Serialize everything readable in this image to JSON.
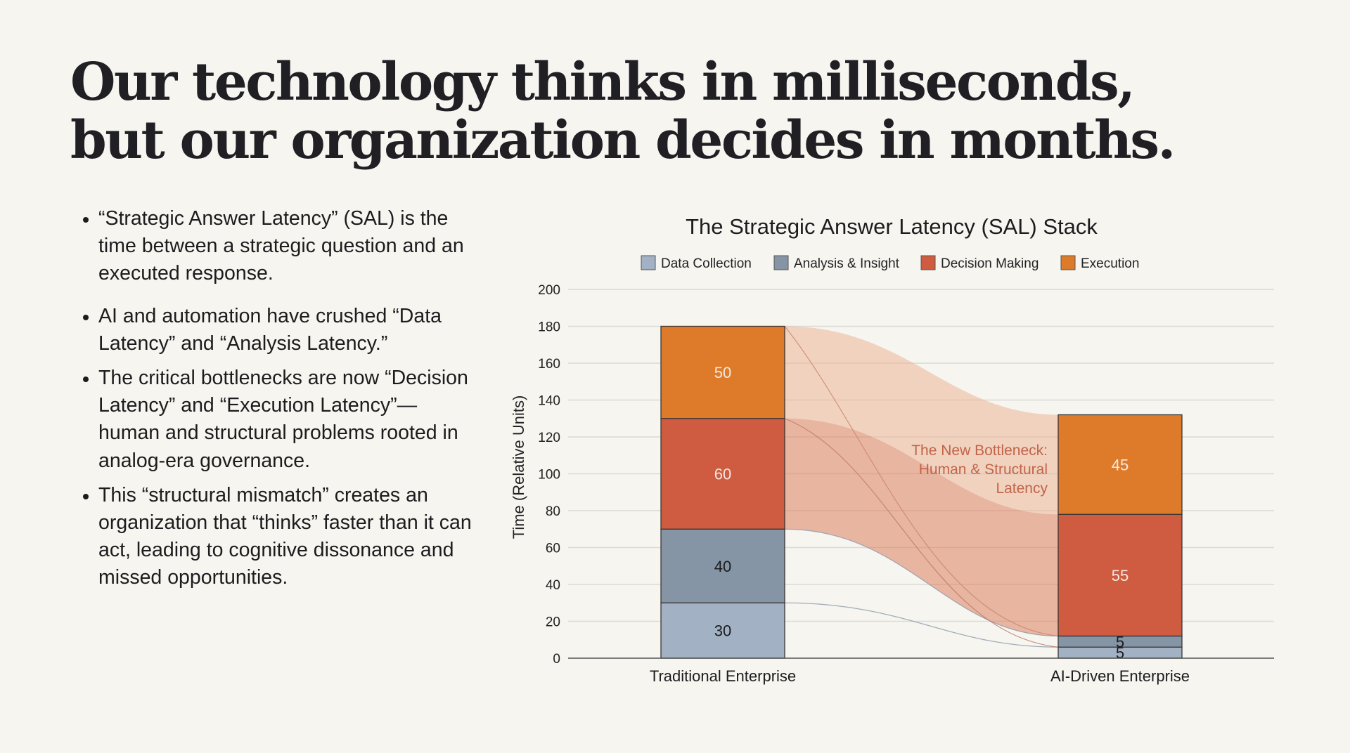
{
  "headline": {
    "line1": "Our technology thinks in milliseconds,",
    "line2": "but our organization decides in months."
  },
  "bullets": [
    "“Strategic Answer Latency” (SAL) is the time between a strategic question and an executed response.",
    "AI and automation have crushed “Data Latency” and “Analysis Latency.”",
    "The critical bottlenecks are now “Decision Latency” and “Execution Latency”—human and structural problems rooted in analog-era governance.",
    "This “structural mismatch” creates an organization that “thinks” faster than it can act, leading to cognitive dissonance and missed opportunities."
  ],
  "chart_data": {
    "type": "bar",
    "subtype": "stacked-with-flows",
    "title": "The Strategic Answer Latency (SAL) Stack",
    "xlabel": "",
    "ylabel": "Time (Relative Units)",
    "ylim": [
      0,
      200
    ],
    "yticks": [
      0,
      20,
      40,
      60,
      80,
      100,
      120,
      140,
      160,
      180,
      200
    ],
    "grid": true,
    "legend_position": "top-center",
    "categories": [
      "Traditional Enterprise",
      "AI-Driven Enterprise"
    ],
    "series": [
      {
        "name": "Data Collection",
        "color": "#a3b1c4",
        "label_color": "#1c1c1e",
        "values": [
          30,
          5
        ]
      },
      {
        "name": "Analysis & Insight",
        "color": "#8595a6",
        "label_color": "#1c1c1e",
        "values": [
          40,
          5
        ]
      },
      {
        "name": "Decision Making",
        "color": "#cf5b40",
        "label_color": "#f6e9df",
        "values": [
          60,
          55
        ]
      },
      {
        "name": "Execution",
        "color": "#de7b2b",
        "label_color": "#f6e9df",
        "values": [
          50,
          45
        ]
      }
    ],
    "annotation": {
      "lines": [
        "The New Bottleneck:",
        "Human & Structural",
        "Latency"
      ],
      "color": "#c2644a"
    }
  }
}
